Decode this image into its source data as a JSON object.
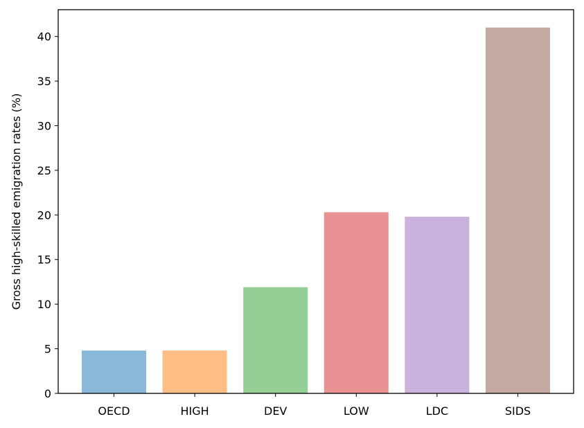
{
  "chart_data": {
    "type": "bar",
    "title": "",
    "xlabel": "",
    "ylabel": "Gross high-skilled emigration rates (%)",
    "categories": [
      "OECD",
      "HIGH",
      "DEV",
      "LOW",
      "LDC",
      "SIDS"
    ],
    "values": [
      4.8,
      4.8,
      11.9,
      20.3,
      19.8,
      41.0
    ],
    "colors": [
      "#8bb9d9",
      "#ffbe86",
      "#96cf95",
      "#e99293",
      "#c9b2dc",
      "#c5aaa4"
    ],
    "ylim": [
      0,
      43
    ],
    "yticks": [
      0,
      5,
      10,
      15,
      20,
      25,
      30,
      35,
      40
    ],
    "grid": false,
    "legend": "none"
  }
}
